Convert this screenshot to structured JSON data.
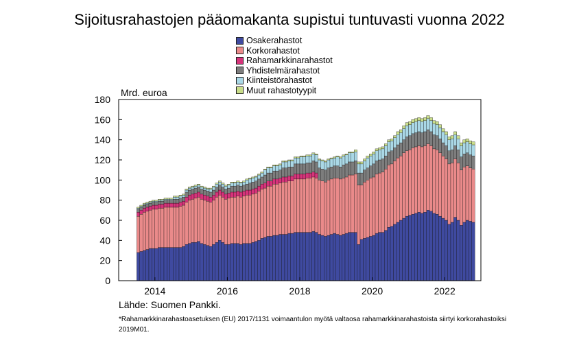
{
  "chart_data": {
    "type": "bar",
    "stacked": true,
    "title": "Sijoitusrahastojen pääomakanta supistui tuntuvasti vuonna 2022",
    "ylabel": "Mrd. euroa",
    "ylim": [
      0,
      180
    ],
    "yticks": [
      "0",
      "20",
      "40",
      "60",
      "80",
      "100",
      "120",
      "140",
      "160",
      "180"
    ],
    "xticks": [
      "2014",
      "2016",
      "2018",
      "2020",
      "2022"
    ],
    "x_start": "2014-01",
    "x_end": "2022-09",
    "grid": false,
    "legend_position": "top-center",
    "series": [
      {
        "name": "Osakerahastot",
        "color": "#3f4aa0",
        "values": [
          28,
          29,
          30,
          31,
          32,
          32,
          32,
          33,
          33,
          33,
          33,
          33,
          33,
          33,
          33,
          34,
          36,
          37,
          38,
          38,
          39,
          37,
          36,
          35,
          34,
          36,
          38,
          40,
          38,
          36,
          36,
          37,
          37,
          37,
          36,
          37,
          37,
          37,
          38,
          39,
          40,
          42,
          43,
          44,
          44,
          45,
          45,
          46,
          46,
          46,
          47,
          47,
          48,
          48,
          48,
          48,
          48,
          48,
          49,
          48,
          46,
          45,
          44,
          45,
          46,
          47,
          46,
          45,
          46,
          47,
          48,
          48,
          48,
          36,
          41,
          42,
          43,
          44,
          45,
          47,
          48,
          48,
          50,
          53,
          54,
          56,
          58,
          60,
          62,
          64,
          65,
          66,
          67,
          68,
          67,
          68,
          70,
          69,
          67,
          66,
          64,
          62,
          60,
          56,
          58,
          63,
          60,
          55,
          58,
          60,
          59,
          58
        ]
      },
      {
        "name": "Korkorahastot",
        "color": "#ea8a8a",
        "values": [
          36,
          37,
          38,
          38,
          38,
          39,
          39,
          39,
          39,
          40,
          40,
          40,
          40,
          40,
          41,
          41,
          42,
          43,
          43,
          44,
          44,
          44,
          44,
          44,
          44,
          44,
          45,
          45,
          45,
          45,
          46,
          46,
          46,
          47,
          47,
          47,
          48,
          48,
          48,
          48,
          49,
          49,
          49,
          50,
          50,
          51,
          51,
          51,
          52,
          52,
          52,
          52,
          53,
          53,
          53,
          53,
          54,
          54,
          54,
          54,
          54,
          54,
          54,
          55,
          55,
          55,
          56,
          56,
          56,
          56,
          57,
          57,
          58,
          59,
          54,
          56,
          57,
          58,
          58,
          59,
          59,
          60,
          61,
          62,
          62,
          63,
          64,
          64,
          65,
          65,
          65,
          66,
          66,
          66,
          66,
          66,
          66,
          65,
          64,
          64,
          63,
          62,
          61,
          60,
          59,
          58,
          57,
          55,
          55,
          54,
          53,
          53
        ]
      },
      {
        "name": "Rahamarkkinarahastot",
        "color": "#d6337a",
        "values": [
          4,
          4,
          4,
          4,
          4,
          4,
          4,
          4,
          4,
          4,
          4,
          4,
          4,
          4,
          4,
          4,
          5,
          5,
          5,
          5,
          5,
          5,
          5,
          5,
          5,
          5,
          5,
          5,
          5,
          5,
          5,
          5,
          5,
          5,
          5,
          5,
          5,
          5,
          5,
          5,
          5,
          5,
          5,
          5,
          5,
          5,
          5,
          5,
          5,
          5,
          5,
          5,
          5,
          5,
          5,
          5,
          5,
          5,
          5,
          5,
          0,
          0,
          0,
          0,
          0,
          0,
          0,
          0,
          0,
          0,
          0,
          0,
          0,
          0,
          0,
          0,
          0,
          0,
          0,
          0,
          0,
          0,
          0,
          0,
          0,
          0,
          0,
          0,
          0,
          0,
          0,
          0,
          0,
          0,
          0,
          0,
          0,
          0,
          0,
          0,
          0,
          0,
          0,
          0,
          0,
          0,
          0,
          0,
          0,
          0,
          0,
          0
        ]
      },
      {
        "name": "Yhdistelmärahastot",
        "color": "#7d7d7d",
        "values": [
          3,
          3,
          3,
          3,
          3,
          3,
          3,
          3,
          3,
          3,
          3,
          3,
          4,
          4,
          4,
          4,
          5,
          5,
          5,
          5,
          5,
          5,
          5,
          5,
          5,
          5,
          5,
          5,
          5,
          5,
          5,
          6,
          6,
          6,
          6,
          6,
          6,
          7,
          7,
          7,
          7,
          7,
          8,
          8,
          8,
          8,
          8,
          8,
          9,
          9,
          9,
          9,
          10,
          10,
          10,
          10,
          10,
          10,
          11,
          11,
          12,
          12,
          12,
          12,
          12,
          12,
          12,
          12,
          13,
          13,
          13,
          13,
          13,
          12,
          12,
          12,
          12,
          12,
          13,
          13,
          13,
          13,
          13,
          13,
          13,
          13,
          13,
          13,
          13,
          14,
          14,
          14,
          14,
          14,
          14,
          14,
          14,
          14,
          14,
          14,
          14,
          13,
          13,
          13,
          13,
          13,
          13,
          13,
          13,
          13,
          13,
          13
        ]
      },
      {
        "name": "Kiinteistörahastot",
        "color": "#aad8e6",
        "values": [
          1,
          1,
          1,
          1,
          1,
          1,
          1,
          1,
          1,
          1,
          1,
          1,
          2,
          2,
          2,
          2,
          2,
          2,
          2,
          2,
          2,
          2,
          2,
          2,
          3,
          3,
          3,
          3,
          3,
          3,
          3,
          3,
          3,
          3,
          3,
          3,
          4,
          4,
          4,
          4,
          4,
          4,
          5,
          5,
          5,
          5,
          5,
          5,
          6,
          6,
          6,
          6,
          6,
          6,
          7,
          7,
          7,
          7,
          7,
          7,
          8,
          8,
          8,
          8,
          8,
          8,
          9,
          9,
          9,
          9,
          9,
          9,
          9,
          9,
          9,
          9,
          10,
          10,
          10,
          10,
          10,
          10,
          10,
          10,
          10,
          10,
          10,
          10,
          11,
          11,
          11,
          11,
          11,
          11,
          11,
          11,
          11,
          11,
          11,
          11,
          11,
          11,
          11,
          11,
          11,
          11,
          11,
          11,
          11,
          11,
          11,
          11
        ]
      },
      {
        "name": "Muut rahastotyypit",
        "color": "#c9dd8a",
        "values": [
          1,
          1,
          1,
          1,
          1,
          1,
          1,
          1,
          1,
          1,
          1,
          1,
          1,
          1,
          1,
          1,
          1,
          1,
          1,
          1,
          1,
          1,
          1,
          1,
          1,
          1,
          1,
          1,
          1,
          1,
          1,
          1,
          1,
          1,
          1,
          1,
          1,
          1,
          1,
          1,
          1,
          1,
          1,
          1,
          1,
          1,
          1,
          1,
          1,
          1,
          1,
          1,
          1,
          1,
          1,
          1,
          1,
          1,
          1,
          1,
          1,
          1,
          1,
          1,
          1,
          1,
          1,
          1,
          1,
          1,
          1,
          1,
          2,
          2,
          2,
          2,
          2,
          2,
          2,
          2,
          2,
          2,
          2,
          2,
          2,
          2,
          3,
          3,
          3,
          3,
          3,
          3,
          3,
          3,
          3,
          3,
          3,
          3,
          3,
          3,
          3,
          3,
          3,
          3,
          3,
          3,
          3,
          3,
          3,
          3,
          3,
          3
        ]
      }
    ]
  },
  "source": "Lähde: Suomen Pankki.",
  "footnote": "*Rahamarkkinarahastoasetuksen (EU) 2017/1131 voimaantulon myötä valtaosa rahamarkkinarahastoista siirtyi korkorahastoiksi 2019M01."
}
